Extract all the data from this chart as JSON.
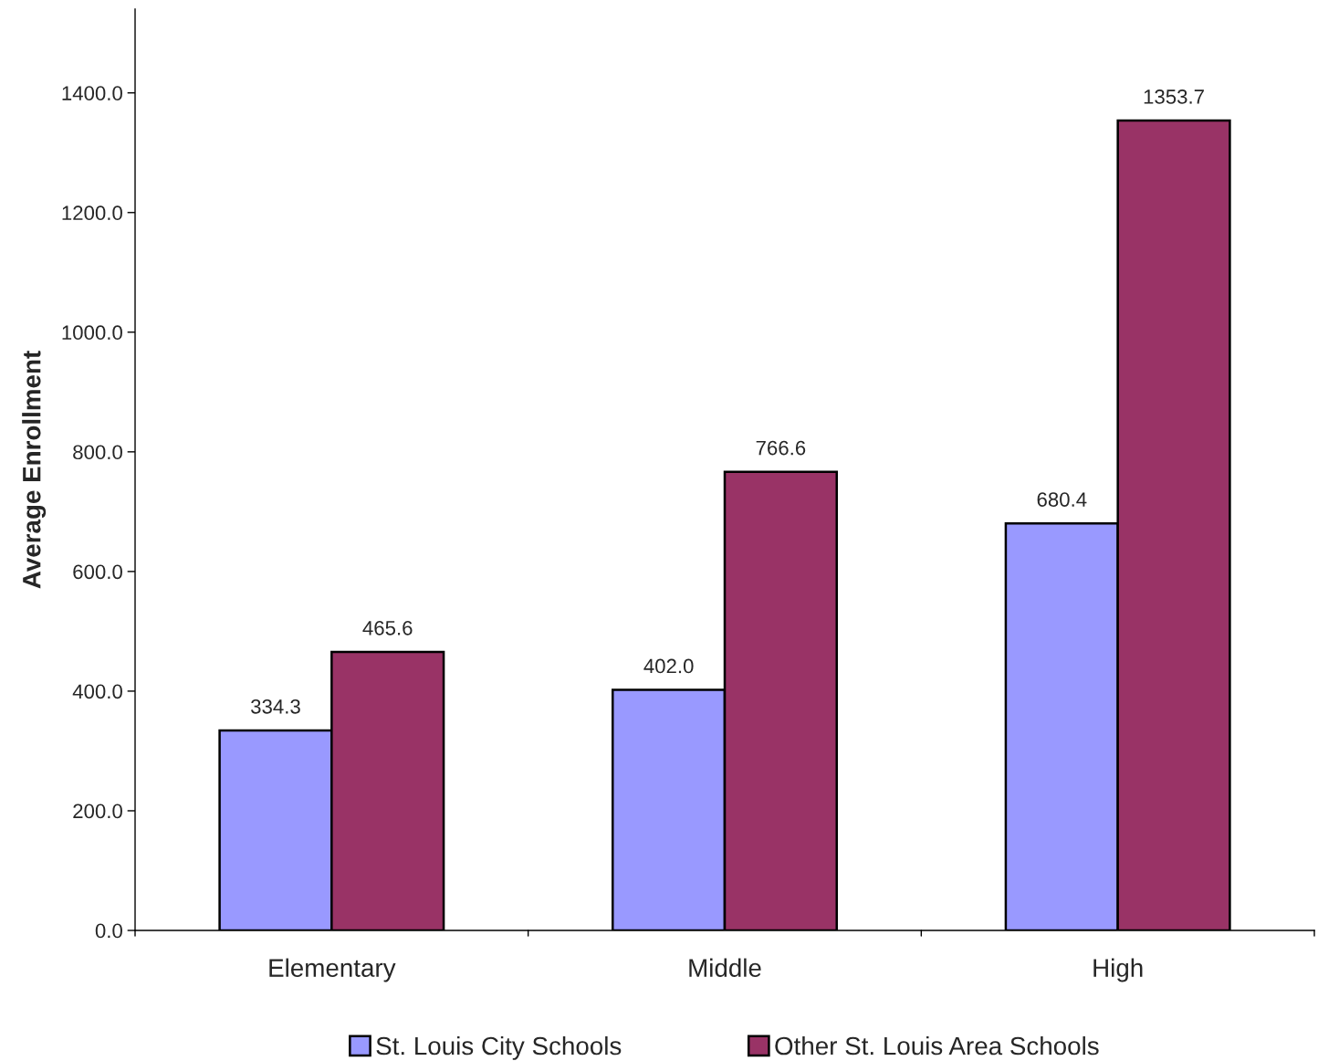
{
  "chart_data": {
    "type": "bar",
    "ylabel": "Average Enrollment",
    "categories": [
      "Elementary",
      "Middle",
      "High"
    ],
    "series": [
      {
        "name": "St. Louis City Schools",
        "color": "#9999ff",
        "values": [
          334.3,
          402.0,
          680.4
        ]
      },
      {
        "name": "Other St. Louis Area Schools",
        "color": "#993366",
        "values": [
          465.6,
          766.6,
          1353.7
        ]
      }
    ],
    "value_labels": [
      [
        "334.3",
        "402.0",
        "680.4"
      ],
      [
        "465.6",
        "766.6",
        "1353.7"
      ]
    ],
    "ylim": [
      0,
      1540
    ],
    "yticks": [
      {
        "value": 0,
        "label": "0.0"
      },
      {
        "value": 200,
        "label": "200.0"
      },
      {
        "value": 400,
        "label": "400.0"
      },
      {
        "value": 600,
        "label": "600.0"
      },
      {
        "value": 800,
        "label": "800.0"
      },
      {
        "value": 1000,
        "label": "1000.0"
      },
      {
        "value": 1200,
        "label": "1200.0"
      },
      {
        "value": 1400,
        "label": "1400.0"
      }
    ],
    "grid": false,
    "legend": "bottom"
  }
}
